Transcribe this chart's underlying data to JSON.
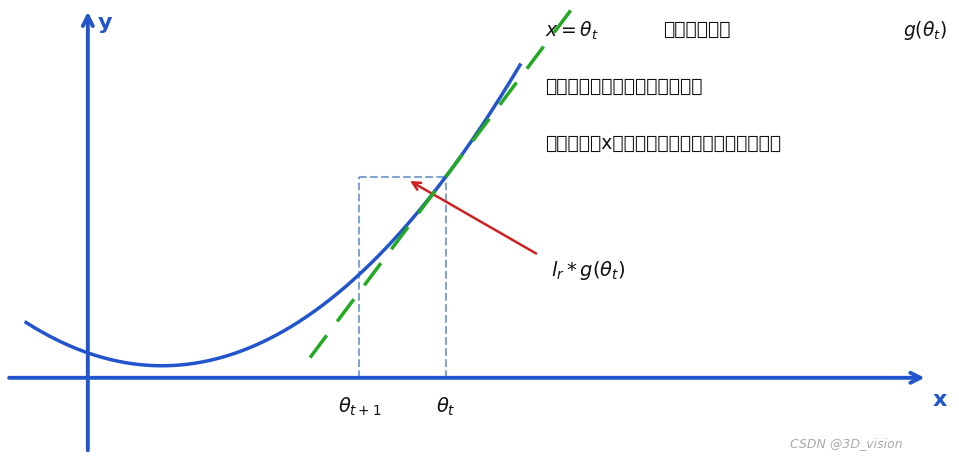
{
  "bg_color": "#ffffff",
  "curve_color": "#2255cc",
  "tangent_color": "#22aa22",
  "axis_color": "#2255cc",
  "dashed_color": "#7799cc",
  "arrow_color": "#cc2222",
  "text_color": "#111111",
  "watermark_color": "#aaaaaa",
  "figsize": [
    9.59,
    4.62
  ],
  "dpi": 100,
  "watermark": "CSDN @3D_vision",
  "xlabel": "x",
  "ylabel": "y",
  "theta_t_label": "$\\theta_t$",
  "theta_t1_label": "$\\theta_{t+1}$"
}
